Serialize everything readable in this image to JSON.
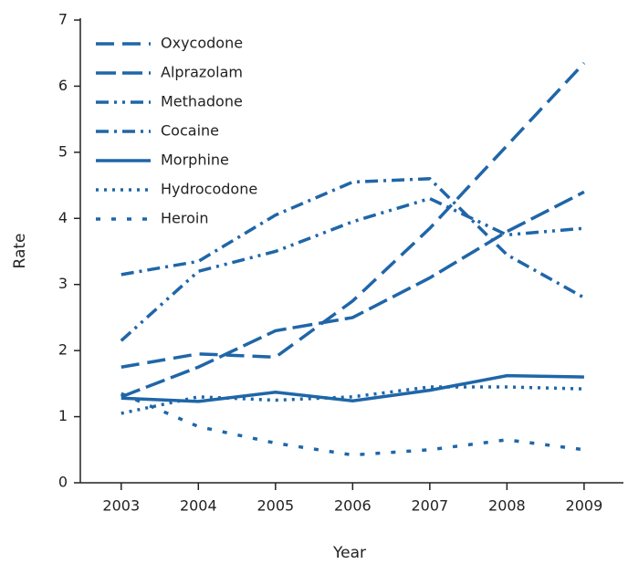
{
  "chart_data": {
    "type": "line",
    "x_label": "Year",
    "y_label": "Rate",
    "x": [
      2003,
      2004,
      2005,
      2006,
      2007,
      2008,
      2009
    ],
    "xlim": [
      2002.47,
      2009.51
    ],
    "xticks": [
      2003,
      2004,
      2005,
      2006,
      2007,
      2008,
      2009
    ],
    "ylim": [
      0,
      7
    ],
    "yticks": [
      0,
      1,
      2,
      3,
      4,
      5,
      6,
      7
    ],
    "legend": "top-left",
    "series": [
      {
        "name": "Oxycodone",
        "color": "#1f66a8",
        "values": [
          1.75,
          1.95,
          1.9,
          2.75,
          3.85,
          5.1,
          6.35
        ]
      },
      {
        "name": "Alprazolam",
        "color": "#1f66a8",
        "values": [
          1.3,
          1.75,
          2.3,
          2.5,
          3.1,
          3.8,
          4.4
        ]
      },
      {
        "name": "Methadone",
        "color": "#1f66a8",
        "values": [
          2.15,
          3.2,
          3.5,
          3.95,
          4.3,
          3.75,
          3.85
        ]
      },
      {
        "name": "Cocaine",
        "color": "#1f66a8",
        "values": [
          3.15,
          3.35,
          4.05,
          4.55,
          4.6,
          3.45,
          2.8
        ]
      },
      {
        "name": "Morphine",
        "color": "#1f66a8",
        "values": [
          1.28,
          1.23,
          1.37,
          1.24,
          1.4,
          1.62,
          1.6
        ]
      },
      {
        "name": "Hydrocodone",
        "color": "#1f66a8",
        "values": [
          1.05,
          1.3,
          1.25,
          1.3,
          1.45,
          1.45,
          1.42
        ]
      },
      {
        "name": "Heroin",
        "color": "#1f66a8",
        "values": [
          1.35,
          0.85,
          0.6,
          0.42,
          0.5,
          0.65,
          0.5
        ]
      }
    ]
  }
}
